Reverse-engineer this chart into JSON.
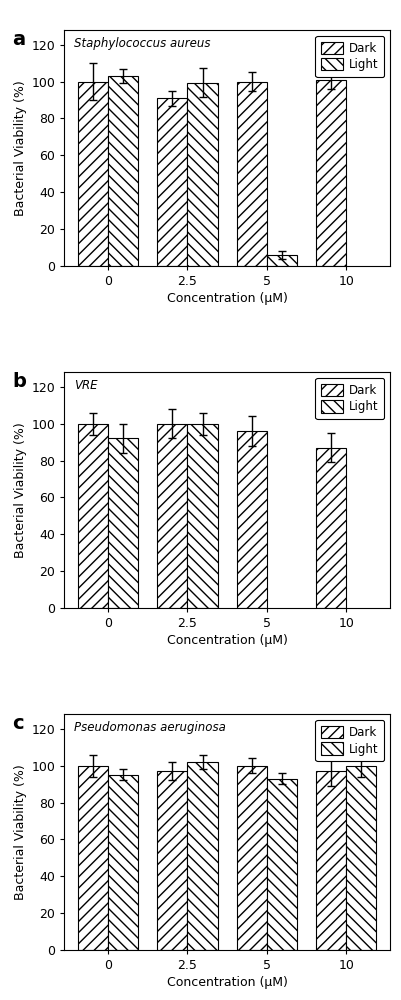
{
  "panels": [
    {
      "label": "a",
      "title": "Staphylococcus aureus",
      "x_labels": [
        "0",
        "2.5",
        "5",
        "10"
      ],
      "dark_values": [
        100,
        91,
        100,
        101
      ],
      "dark_errors": [
        10,
        4,
        5,
        5
      ],
      "light_values": [
        103,
        99.5,
        6,
        null
      ],
      "light_errors": [
        4,
        8,
        2,
        null
      ]
    },
    {
      "label": "b",
      "title": "VRE",
      "x_labels": [
        "0",
        "2.5",
        "5",
        "10"
      ],
      "dark_values": [
        100,
        100,
        96,
        87
      ],
      "dark_errors": [
        6,
        8,
        8,
        8
      ],
      "light_values": [
        92,
        100,
        null,
        null
      ],
      "light_errors": [
        8,
        6,
        null,
        null
      ]
    },
    {
      "label": "c",
      "title": "Pseudomonas aeruginosa",
      "x_labels": [
        "0",
        "2.5",
        "5",
        "10"
      ],
      "dark_values": [
        100,
        97,
        100,
        97
      ],
      "dark_errors": [
        6,
        5,
        4,
        8
      ],
      "light_values": [
        95,
        102,
        93,
        100
      ],
      "light_errors": [
        3,
        4,
        3,
        6
      ]
    }
  ],
  "ylabel": "Bacterial Viability (%)",
  "xlabel": "Concentration (μM)",
  "ylim": [
    0,
    128
  ],
  "yticks": [
    0,
    20,
    40,
    60,
    80,
    100,
    120
  ],
  "bar_width": 0.38,
  "dark_hatch": "///",
  "light_hatch": "\\\\\\",
  "bar_color": "white",
  "bar_edge_color": "black",
  "error_color": "black",
  "figure_bg": "white",
  "x_positions": [
    0,
    1,
    2,
    3
  ],
  "xlim": [
    -0.55,
    3.55
  ]
}
